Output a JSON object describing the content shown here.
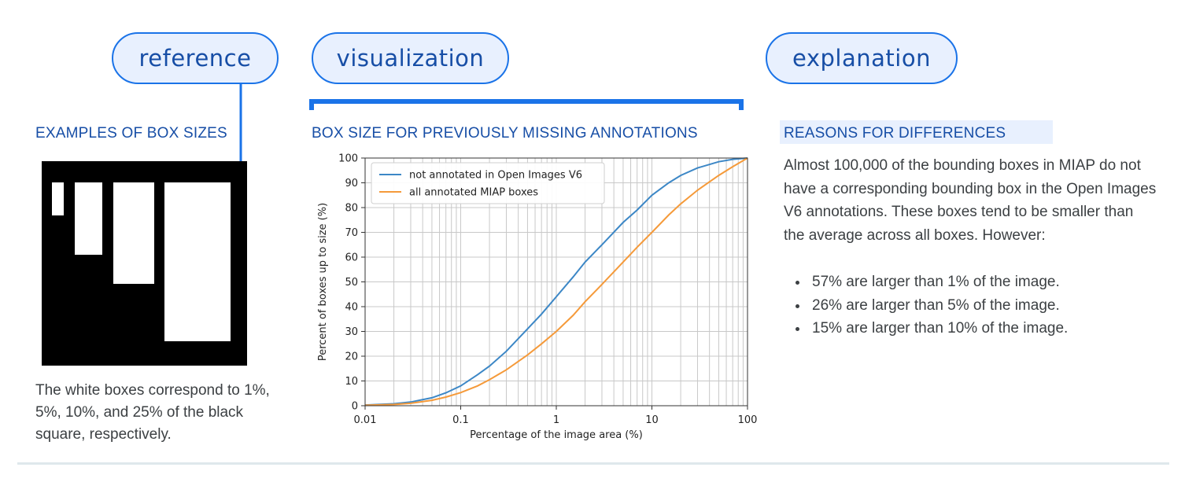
{
  "pills": {
    "reference": "reference",
    "visualization": "visualization",
    "explanation": "explanation"
  },
  "examples": {
    "title": "EXAMPLES OF BOX SIZES",
    "caption": "The white boxes correspond to 1%, 5%, 10%, and 25% of the black square, respectively.",
    "box_percentages": [
      1,
      5,
      10,
      25
    ]
  },
  "reasons": {
    "title": "REASONS FOR DIFFERENCES",
    "paragraph": "Almost 100,000 of the bounding boxes in MIAP do not have a corresponding bounding box in the Open Images V6 annotations. These boxes tend to be smaller than the average across all boxes. However:",
    "bullets": [
      "57% are larger than 1% of the image.",
      "26% are larger than 5% of the image.",
      "15% are larger than 10% of the image."
    ]
  },
  "colors": {
    "accent": "#1a73e8",
    "title_blue": "#174ea6",
    "pill_fill": "#e8f0fe",
    "series_blue": "#3c87c6",
    "series_orange": "#f59a3a"
  },
  "chart_data": {
    "type": "line",
    "title": "BOX SIZE FOR PREVIOUSLY MISSING ANNOTATIONS",
    "xlabel": "Percentage of the image area (%)",
    "ylabel": "Percent of boxes up to size (%)",
    "xscale": "log",
    "xlim": [
      0.01,
      100
    ],
    "ylim": [
      0,
      100
    ],
    "xticks": [
      "0.01",
      "0.1",
      "1",
      "10",
      "100"
    ],
    "yticks": [
      "0",
      "10",
      "20",
      "30",
      "40",
      "50",
      "60",
      "70",
      "80",
      "90",
      "100"
    ],
    "grid": true,
    "legend": "top-left",
    "series": [
      {
        "name": "not annotated in Open Images V6",
        "color": "#3c87c6",
        "x": [
          0.01,
          0.02,
          0.03,
          0.05,
          0.07,
          0.1,
          0.15,
          0.2,
          0.3,
          0.5,
          0.7,
          1,
          1.5,
          2,
          3,
          5,
          7,
          10,
          15,
          20,
          30,
          50,
          70,
          100
        ],
        "y": [
          0.3,
          0.8,
          1.5,
          3.2,
          5.2,
          8,
          12.5,
          16,
          22,
          31,
          37,
          44,
          52,
          58,
          65,
          74,
          79,
          85,
          90,
          93,
          96,
          98.5,
          99.5,
          100
        ]
      },
      {
        "name": "all annotated MIAP boxes",
        "color": "#f59a3a",
        "x": [
          0.01,
          0.02,
          0.03,
          0.05,
          0.07,
          0.1,
          0.15,
          0.2,
          0.3,
          0.5,
          0.7,
          1,
          1.5,
          2,
          3,
          5,
          7,
          10,
          15,
          20,
          30,
          50,
          70,
          100
        ],
        "y": [
          0.2,
          0.5,
          1,
          2.2,
          3.5,
          5.3,
          8,
          10.5,
          14.5,
          20.5,
          25,
          30,
          36.5,
          42,
          49,
          58,
          64,
          70,
          77,
          81.5,
          87,
          93,
          96.5,
          100
        ]
      }
    ]
  }
}
